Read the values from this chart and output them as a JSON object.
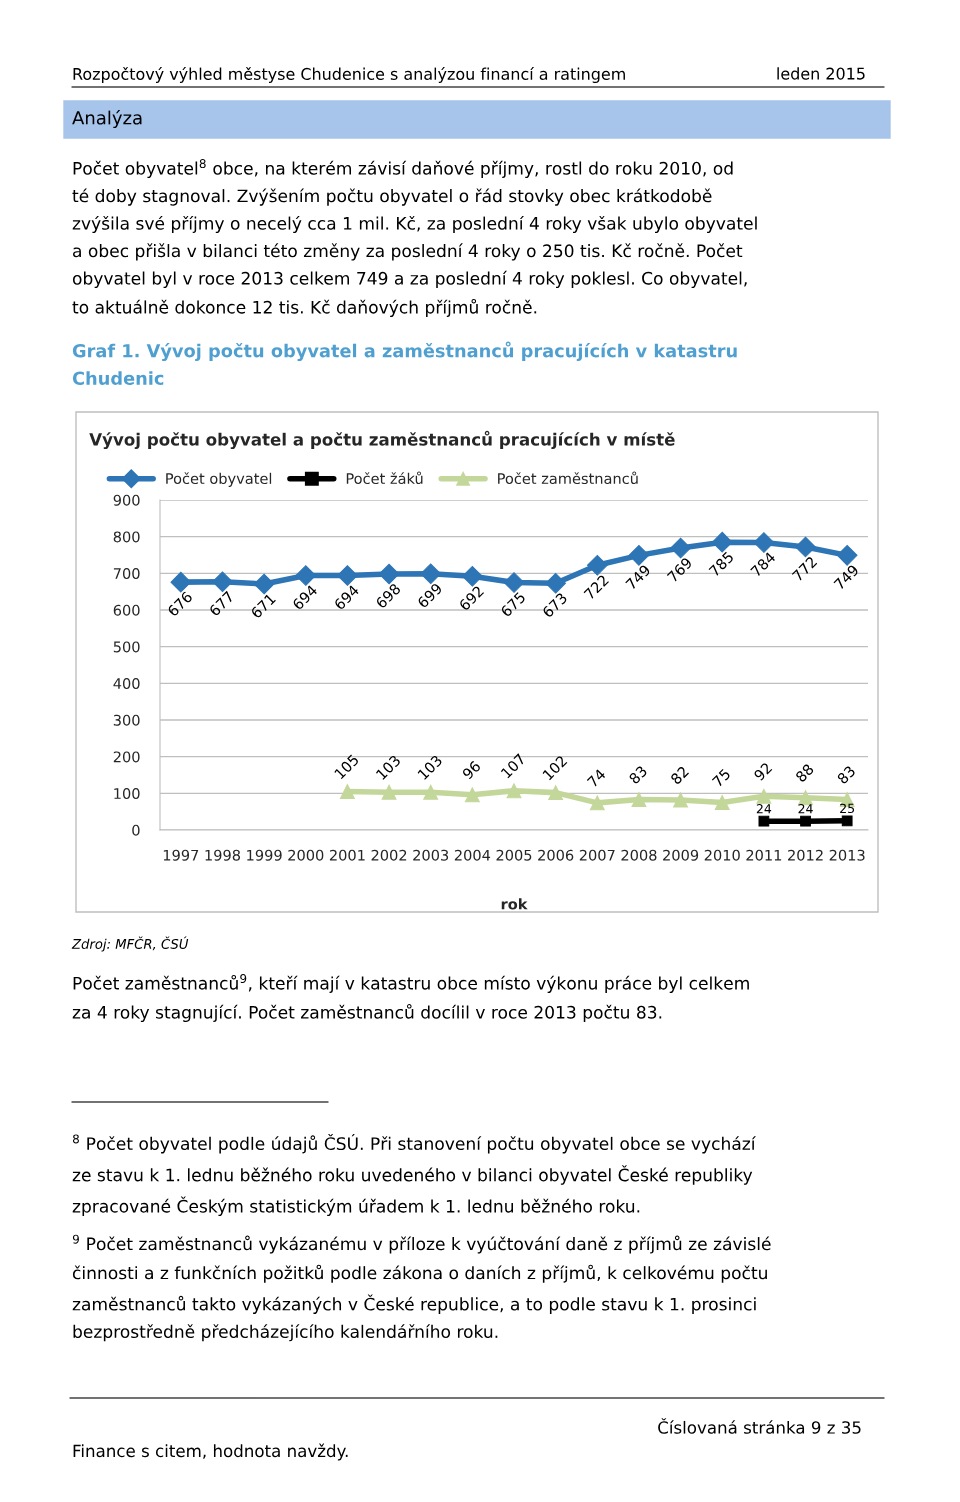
{
  "chart_data": {
    "type": "line",
    "title": "Vývoj počtu obyvatel a počtu zaměstnanců pracujících v místě",
    "xlabel": "rok",
    "categories": [
      "1997",
      "1998",
      "1999",
      "2000",
      "2001",
      "2002",
      "2003",
      "2004",
      "2005",
      "2006",
      "2007",
      "2008",
      "2009",
      "2010",
      "2011",
      "2012",
      "2013"
    ],
    "series": [
      {
        "name": "Počet obyvatel",
        "color": "#2e75b6",
        "marker": "diamond",
        "values": [
          676,
          677,
          671,
          694,
          694,
          698,
          699,
          692,
          675,
          673,
          722,
          749,
          769,
          785,
          784,
          772,
          749
        ]
      },
      {
        "name": "Počet žáků",
        "color": "#000000",
        "marker": "square",
        "values": [
          null,
          null,
          null,
          null,
          null,
          null,
          null,
          null,
          null,
          null,
          null,
          null,
          null,
          null,
          24,
          24,
          25
        ]
      },
      {
        "name": "Počet zaměstnanců",
        "color": "#c4d79b",
        "marker": "triangle",
        "values": [
          null,
          null,
          null,
          null,
          105,
          103,
          103,
          96,
          107,
          102,
          74,
          83,
          82,
          75,
          92,
          88,
          83
        ]
      }
    ],
    "ylim": [
      0,
      900
    ],
    "yticks": [
      0,
      100,
      200,
      300,
      400,
      500,
      600,
      700,
      800,
      900
    ],
    "grid": "y",
    "legend": "top left",
    "data_labels": true,
    "line_style": "solid",
    "annotations": [
      "Rozpočtový výhled městyse Chudenice s analýzou financí a ratingem",
      "leden 2015",
      "Analýza",
      "Počet obyvatel$^{8}$ obce, na kterém závisí daňové příjmy, rostl do roku 2010, od\nté doby stagnoval. Zvýšením počtu obyvatel o řád stovky obec krátkodobě\nzvýšila své příjmy o necelý cca 1 mil. Kč, za poslední 4 roky však ubylo obyvatel\na obec přišla v bilanci této změny za poslední 4 roky o 250 tis. Kč ročně. Počet\nobyvatel byl v roce 2013 celkem 749 a za poslední 4 roky poklesl. Co obyvatel,\nto aktuálně dokonce 12 tis. Kč daňových příjmů ročně.",
      "Graf 1. Vývoj počtu obyvatel a zaměstnanců pracujících v katastru\nChudenic",
      "Zdroj: MFČR, ČSÚ",
      "Počet zaměstnanců$^{9}$, kteří mají v katastru obce místo výkonu práce byl celkem\nza 4 roky stagnující. Počet zaměstnanců docílil v roce 2013 počtu 83.",
      "$^{8}$ Počet obyvatel podle údajů ČSÚ. Při stanovení počtu obyvatel obce se vychází\nze stavu k 1. lednu běžného roku uvedeného v bilanci obyvatel České republiky\nzpracované Českým statistickým úřadem k 1. lednu běžného roku.",
      "$^{9}$ Počet zaměstnanců vykázanému v příloze k vyúčtování daně z příjmů ze závislé\nčinnosti a z funkčních požitků podle zákona o daních z příjmů, k celkovému počtu\nzaměstnanců takto vykázaných v České republice, a to podle stavu k 1. prosinci\nbezprostředně předcházejícího kalendářního roku.",
      "Číslovaná stránka 9 z 35",
      "Finance s citem, hodnota navždy."
    ]
  }
}
